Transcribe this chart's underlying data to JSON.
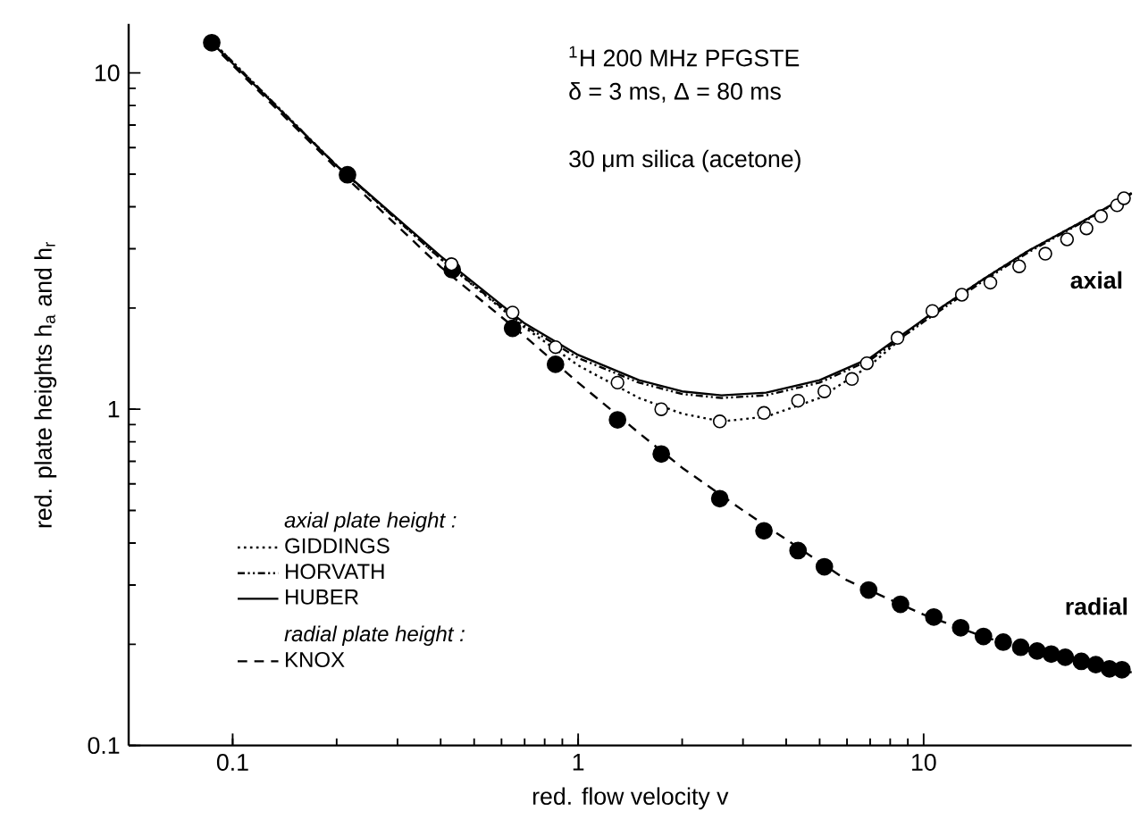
{
  "chart_data": {
    "type": "line",
    "xlabel": "red. flow velocity v",
    "ylabel": "red. plate heights h$_{a}$ and h$_{r}$",
    "log": "xy",
    "xlim": [
      0.05,
      40
    ],
    "ylim": [
      0.1,
      14
    ],
    "xticks": [
      0.1,
      1,
      10
    ],
    "yticks": [
      0.1,
      1,
      10
    ],
    "grid": false,
    "legend": "bottom left",
    "annotations": [
      "$^{1}$H 200 MHz PFGSTE",
      "δ = 3 ms, Δ = 80 ms",
      "30 μm silica (acetone)",
      "axial plate height :",
      "radial plate height :",
      "axial",
      "radial"
    ],
    "series": [
      {
        "name": "GIDDINGS",
        "color": "#000000",
        "line_style": "dotted",
        "x": [
          0.09,
          0.2,
          0.4,
          0.7,
          1,
          1.5,
          2,
          2.6,
          3.5,
          5,
          7,
          10,
          15,
          20,
          30,
          39
        ],
        "values": [
          12,
          5.3,
          2.8,
          1.75,
          1.35,
          1.08,
          0.97,
          0.92,
          0.95,
          1.08,
          1.35,
          1.85,
          2.45,
          2.95,
          3.7,
          4.3
        ]
      },
      {
        "name": "HORVATH",
        "color": "#000000",
        "line_style": "dashdot",
        "x": [
          0.088,
          0.2,
          0.4,
          0.7,
          1,
          1.5,
          2,
          2.6,
          3.5,
          5,
          7,
          10,
          15,
          20,
          30,
          40
        ],
        "values": [
          12.3,
          5.3,
          2.8,
          1.77,
          1.42,
          1.2,
          1.11,
          1.08,
          1.1,
          1.2,
          1.4,
          1.82,
          2.42,
          2.92,
          3.68,
          4.38
        ]
      },
      {
        "name": "HUBER",
        "color": "#000000",
        "line_style": "solid",
        "x": [
          0.087,
          0.2,
          0.4,
          0.7,
          1,
          1.5,
          2,
          2.6,
          3.5,
          5,
          7,
          10,
          15,
          20,
          30,
          40
        ],
        "values": [
          12.3,
          5.3,
          2.85,
          1.8,
          1.45,
          1.22,
          1.13,
          1.1,
          1.12,
          1.22,
          1.42,
          1.85,
          2.45,
          2.95,
          3.7,
          4.4
        ]
      },
      {
        "name": "KNOX",
        "color": "#000000",
        "line_style": "dashed",
        "x": [
          0.086,
          0.2,
          0.4,
          0.7,
          1,
          1.5,
          2,
          3,
          4,
          6,
          10,
          15,
          20,
          30,
          40
        ],
        "values": [
          12.3,
          5.2,
          2.65,
          1.65,
          1.2,
          0.85,
          0.67,
          0.5,
          0.41,
          0.31,
          0.245,
          0.21,
          0.193,
          0.175,
          0.165
        ]
      },
      {
        "type": "scatter",
        "marker": "circle",
        "color": "#000000",
        "x": [
          0.43,
          0.646,
          0.86,
          1.3,
          1.74,
          2.57,
          3.45,
          4.33,
          5.16,
          6.2,
          6.85,
          8.4,
          10.6,
          12.9,
          15.6,
          18.9,
          22.5,
          26,
          29.6,
          32.6,
          36.3,
          38
        ],
        "values": [
          2.7,
          1.94,
          1.53,
          1.2,
          1.0,
          0.92,
          0.975,
          1.06,
          1.13,
          1.23,
          1.37,
          1.63,
          1.96,
          2.19,
          2.38,
          2.66,
          2.9,
          3.2,
          3.45,
          3.75,
          4.04,
          4.24
        ]
      },
      {
        "type": "scatter",
        "marker": "circle",
        "color": "#000000",
        "x": [
          0.087,
          0.215,
          0.432,
          0.646,
          0.86,
          1.3,
          1.74,
          2.57,
          3.45,
          4.33,
          5.16,
          6.93,
          8.57,
          10.7,
          12.8,
          14.9,
          17.0,
          19.1,
          21.3,
          23.4,
          25.7,
          28.6,
          31.5,
          34.5,
          37.5
        ],
        "values": [
          12.3,
          4.98,
          2.6,
          1.74,
          1.36,
          0.93,
          0.736,
          0.542,
          0.435,
          0.38,
          0.34,
          0.29,
          0.263,
          0.241,
          0.224,
          0.211,
          0.203,
          0.196,
          0.191,
          0.187,
          0.183,
          0.178,
          0.174,
          0.169,
          0.168
        ]
      }
    ]
  }
}
